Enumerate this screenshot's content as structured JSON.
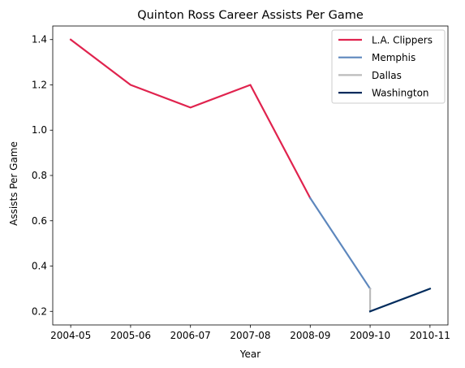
{
  "chart_data": {
    "type": "line",
    "title": "Quinton Ross Career Assists Per Game",
    "xlabel": "Year",
    "ylabel": "Assists Per Game",
    "categories": [
      "2004-05",
      "2005-06",
      "2006-07",
      "2007-08",
      "2008-09",
      "2009-10",
      "2010-11"
    ],
    "ylim": [
      0.14,
      1.46
    ],
    "yticks": [
      0.2,
      0.4,
      0.6,
      0.8,
      1.0,
      1.2,
      1.4
    ],
    "ytick_labels": [
      "0.2",
      "0.4",
      "0.6",
      "0.8",
      "1.0",
      "1.2",
      "1.4"
    ],
    "grid": false,
    "legend_position": "top-right",
    "series": [
      {
        "name": "L.A. Clippers",
        "color": "#e0234e",
        "points": [
          [
            "2004-05",
            1.4
          ],
          [
            "2005-06",
            1.2
          ],
          [
            "2006-07",
            1.1
          ],
          [
            "2007-08",
            1.2
          ],
          [
            "2008-09",
            0.7
          ]
        ]
      },
      {
        "name": "Memphis",
        "color": "#5d87bd",
        "points": [
          [
            "2008-09",
            0.7
          ],
          [
            "2009-10",
            0.3
          ]
        ]
      },
      {
        "name": "Dallas",
        "color": "#bbbbbb",
        "points": [
          [
            "2009-10",
            0.3
          ],
          [
            "2009-10",
            0.2
          ]
        ]
      },
      {
        "name": "Washington",
        "color": "#002b5c",
        "points": [
          [
            "2009-10",
            0.2
          ],
          [
            "2010-11",
            0.3
          ]
        ]
      }
    ]
  }
}
